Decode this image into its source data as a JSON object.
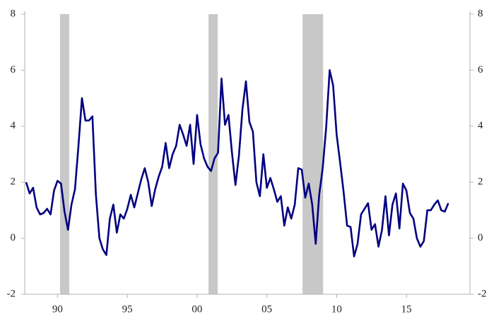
{
  "chart_data": {
    "type": "line",
    "x": [
      1987.75,
      1988,
      1988.25,
      1988.5,
      1988.75,
      1989,
      1989.25,
      1989.5,
      1989.75,
      1990,
      1990.25,
      1990.5,
      1990.75,
      1991,
      1991.25,
      1991.5,
      1991.75,
      1992,
      1992.25,
      1992.5,
      1992.75,
      1993,
      1993.25,
      1993.5,
      1993.75,
      1994,
      1994.25,
      1994.5,
      1994.75,
      1995,
      1995.25,
      1995.5,
      1995.75,
      1996,
      1996.25,
      1996.5,
      1996.75,
      1997,
      1997.25,
      1997.5,
      1997.75,
      1998,
      1998.25,
      1998.5,
      1998.75,
      1999,
      1999.25,
      1999.5,
      1999.75,
      2000,
      2000.25,
      2000.5,
      2000.75,
      2001,
      2001.25,
      2001.5,
      2001.75,
      2002,
      2002.25,
      2002.5,
      2002.75,
      2003,
      2003.25,
      2003.5,
      2003.75,
      2004,
      2004.25,
      2004.5,
      2004.75,
      2005,
      2005.25,
      2005.5,
      2005.75,
      2006,
      2006.25,
      2006.5,
      2006.75,
      2007,
      2007.25,
      2007.5,
      2007.75,
      2008,
      2008.25,
      2008.5,
      2008.75,
      2009,
      2009.25,
      2009.5,
      2009.75,
      2010,
      2010.25,
      2010.5,
      2010.75,
      2011,
      2011.25,
      2011.5,
      2011.75,
      2012,
      2012.25,
      2012.5,
      2012.75,
      2013,
      2013.25,
      2013.5,
      2013.75,
      2014,
      2014.25,
      2014.5,
      2014.75,
      2015,
      2015.25,
      2015.5,
      2015.75,
      2016,
      2016.25,
      2016.5,
      2016.75,
      2017,
      2017.25,
      2017.5,
      2017.75,
      2018
    ],
    "series": [
      {
        "color": "#000080",
        "values": [
          2.0,
          1.6,
          1.8,
          1.1,
          0.85,
          0.9,
          1.05,
          0.85,
          1.7,
          2.05,
          1.95,
          0.95,
          0.3,
          1.2,
          1.75,
          3.3,
          5.0,
          4.2,
          4.2,
          4.35,
          1.55,
          0,
          -0.4,
          -0.6,
          0.7,
          1.2,
          0.2,
          0.85,
          0.7,
          1.05,
          1.55,
          1.1,
          1.6,
          2.1,
          2.5,
          2.0,
          1.15,
          1.75,
          2.2,
          2.55,
          3.4,
          2.5,
          3.0,
          3.3,
          4.05,
          3.7,
          3.3,
          4.05,
          2.65,
          4.4,
          3.35,
          2.85,
          2.55,
          2.4,
          2.85,
          3.05,
          5.7,
          4.05,
          4.4,
          3.05,
          1.9,
          2.95,
          4.6,
          5.6,
          4.15,
          3.8,
          2.0,
          1.5,
          3.0,
          1.8,
          2.15,
          1.75,
          1.3,
          1.5,
          0.45,
          1.1,
          0.7,
          1.2,
          2.5,
          2.45,
          1.45,
          1.95,
          1.2,
          -0.2,
          1.55,
          2.5,
          3.95,
          6.0,
          5.45,
          3.7,
          2.7,
          1.65,
          0.45,
          0.4,
          -0.65,
          -0.2,
          0.85,
          1.05,
          1.25,
          0.3,
          0.5,
          -0.3,
          0.3,
          1.5,
          0.1,
          1.2,
          1.6,
          0.35,
          1.95,
          1.7,
          0.9,
          0.7,
          0,
          -0.3,
          -0.1,
          1.0,
          1.0,
          1.2,
          1.35,
          1.0,
          0.95,
          1.25
        ]
      }
    ],
    "shaded_regions": [
      [
        1990.18,
        1990.84
      ],
      [
        2000.82,
        2001.48
      ],
      [
        2007.56,
        2009.03
      ]
    ],
    "shaded_color": "#c8c8c8",
    "xlim": [
      1987.65,
      2019.55
    ],
    "xticks": [
      {
        "value": 1990,
        "label": "90"
      },
      {
        "value": 1995,
        "label": "95"
      },
      {
        "value": 2000,
        "label": "00"
      },
      {
        "value": 2005,
        "label": "05"
      },
      {
        "value": 2010,
        "label": "10"
      },
      {
        "value": 2015,
        "label": "15"
      }
    ],
    "ylim": [
      -2,
      8
    ],
    "yticks": [
      -2,
      0,
      2,
      4,
      6,
      8
    ],
    "y2lim": [
      -2,
      8
    ],
    "y2ticks": [
      -2,
      0,
      2,
      4,
      6,
      8
    ]
  }
}
